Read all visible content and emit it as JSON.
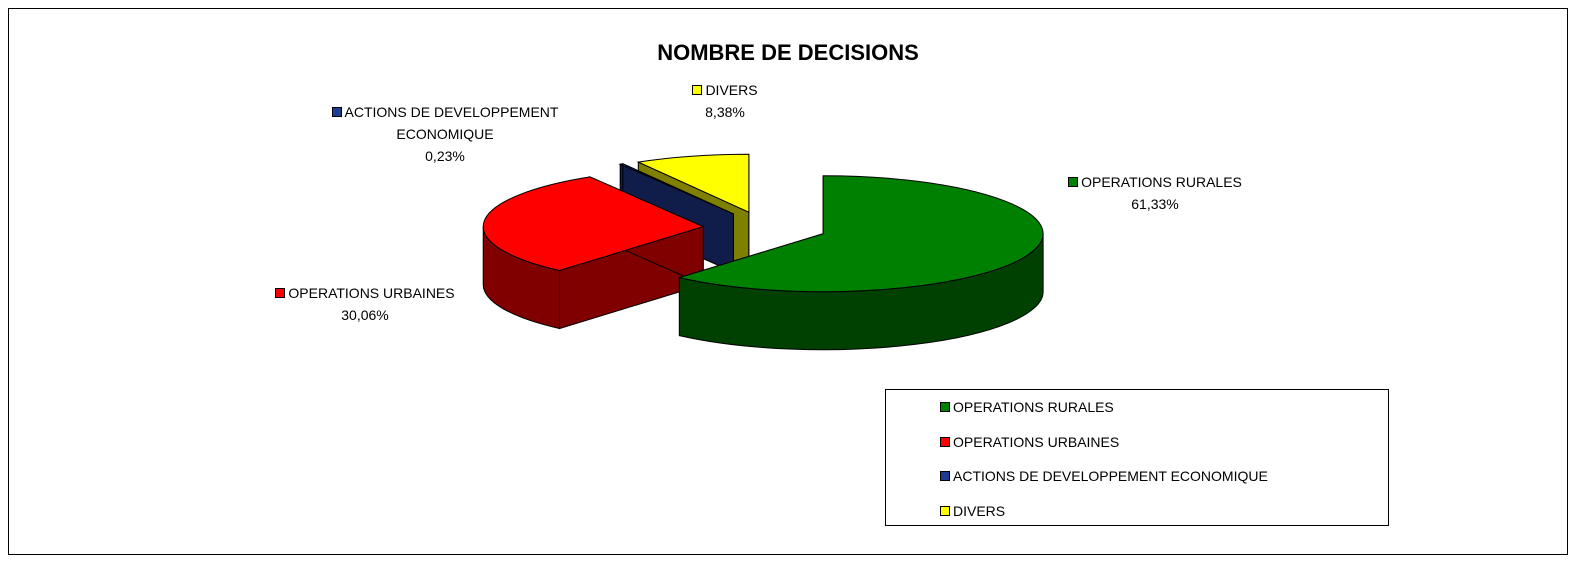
{
  "chart_data": {
    "type": "pie3d",
    "title": "NOMBRE DE DECISIONS",
    "categories": [
      "OPERATIONS RURALES",
      "OPERATIONS URBAINES",
      "ACTIONS DE DEVELOPPEMENT ECONOMIQUE",
      "DIVERS"
    ],
    "values": [
      61.33,
      30.06,
      0.23,
      8.38
    ],
    "value_labels": [
      "61,33%",
      "30,06%",
      "0,23%",
      "8,38%"
    ],
    "colors": [
      "#008000",
      "#ff0000",
      "#1f3a93",
      "#ffff00"
    ],
    "legend": "bottom-right"
  }
}
